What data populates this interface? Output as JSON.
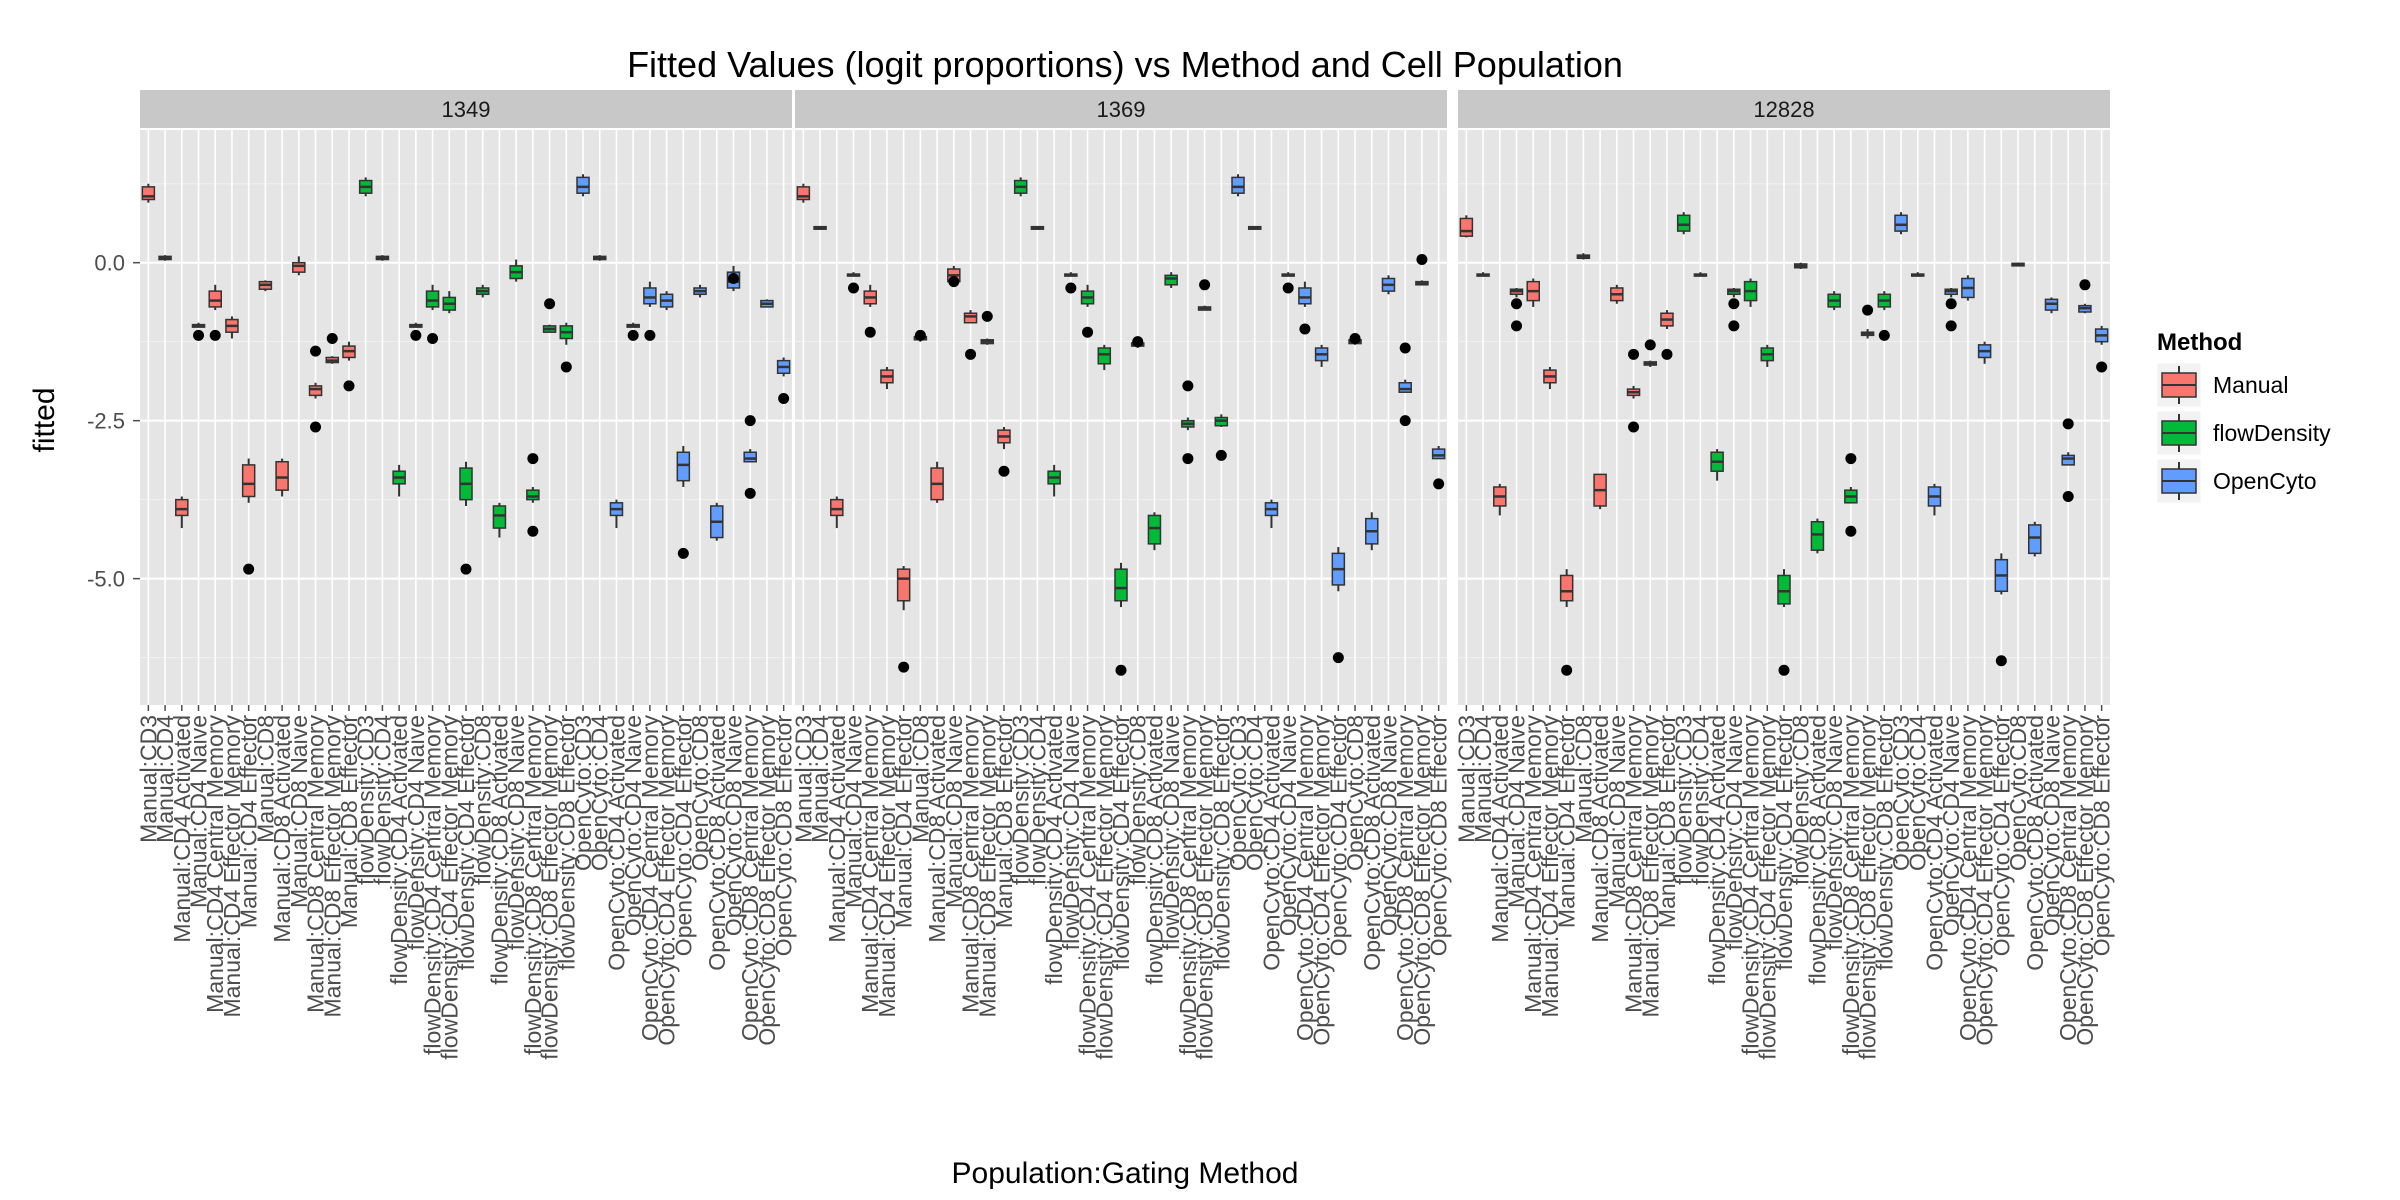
{
  "chart_data": {
    "type": "boxplot",
    "title": "Fitted Values (logit proportions) vs Method and Cell Population",
    "xlabel": "Population:Gating Method",
    "ylabel": "fitted",
    "ylim": [
      -7.0,
      2.1
    ],
    "yticks": [
      0.0,
      -2.5,
      -5.0
    ],
    "ytick_labels": [
      "0.0",
      "-2.5",
      "-5.0"
    ],
    "grid": true,
    "legend": {
      "title": "Method",
      "position": "right",
      "entries": [
        {
          "name": "Manual",
          "color": "#F8766D"
        },
        {
          "name": "flowDensity",
          "color": "#00BA38"
        },
        {
          "name": "OpenCyto",
          "color": "#619CFF"
        }
      ]
    },
    "categories": [
      "Manual:CD3",
      "Manual:CD4",
      "Manual:CD4 Activated",
      "Manual:CD4 Naive",
      "Manual:CD4 Central Memory",
      "Manual:CD4 Effector Memory",
      "Manual:CD4 Effector",
      "Manual:CD8",
      "Manual:CD8 Activated",
      "Manual:CD8 Naive",
      "Manual:CD8 Central Memory",
      "Manual:CD8 Effector Memory",
      "Manual:CD8 Effector",
      "flowDensity:CD3",
      "flowDensity:CD4",
      "flowDensity:CD4 Activated",
      "flowDensity:CD4 Naive",
      "flowDensity:CD4 Central Memory",
      "flowDensity:CD4 Effector Memory",
      "flowDensity:CD4 Effector",
      "flowDensity:CD8",
      "flowDensity:CD8 Activated",
      "flowDensity:CD8 Naive",
      "flowDensity:CD8 Central Memory",
      "flowDensity:CD8 Effector Memory",
      "flowDensity:CD8 Effector",
      "OpenCyto:CD3",
      "OpenCyto:CD4",
      "OpenCyto:CD4 Activated",
      "OpenCyto:CD4 Naive",
      "OpenCyto:CD4 Central Memory",
      "OpenCyto:CD4 Effector Memory",
      "OpenCyto:CD4 Effector",
      "OpenCyto:CD8",
      "OpenCyto:CD8 Activated",
      "OpenCyto:CD8 Naive",
      "OpenCyto:CD8 Central Memory",
      "OpenCyto:CD8 Effector Memory",
      "OpenCyto:CD8 Effector"
    ],
    "box_fields": [
      "lower_whisker",
      "q1",
      "median",
      "q3",
      "upper_whisker"
    ],
    "panels": [
      {
        "label": "1349",
        "boxes": [
          [
            0.95,
            1.0,
            1.05,
            1.2,
            1.25
          ],
          [
            0.03,
            0.05,
            0.07,
            0.1,
            0.12
          ],
          [
            -4.2,
            -4.0,
            -3.9,
            -3.75,
            -3.7
          ],
          [
            -1.0,
            -1.02,
            -1.0,
            -0.98,
            -0.95
          ],
          [
            -0.75,
            -0.7,
            -0.6,
            -0.45,
            -0.35
          ],
          [
            -1.2,
            -1.1,
            -1.0,
            -0.9,
            -0.85
          ],
          [
            -3.8,
            -3.7,
            -3.5,
            -3.2,
            -3.1
          ],
          [
            -0.45,
            -0.42,
            -0.35,
            -0.3,
            -0.28
          ],
          [
            -3.7,
            -3.6,
            -3.4,
            -3.15,
            -3.1
          ],
          [
            -0.2,
            -0.15,
            -0.05,
            0.0,
            0.1
          ],
          [
            -2.15,
            -2.1,
            -2.0,
            -1.95,
            -1.9
          ],
          [
            -1.6,
            -1.58,
            -1.55,
            -1.5,
            -1.48
          ],
          [
            -1.55,
            -1.5,
            -1.4,
            -1.32,
            -1.25
          ],
          [
            1.05,
            1.1,
            1.2,
            1.3,
            1.35
          ],
          [
            0.03,
            0.05,
            0.07,
            0.1,
            0.12
          ],
          [
            -3.7,
            -3.5,
            -3.4,
            -3.3,
            -3.2
          ],
          [
            -1.0,
            -1.02,
            -1.0,
            -0.98,
            -0.95
          ],
          [
            -0.75,
            -0.7,
            -0.6,
            -0.45,
            -0.35
          ],
          [
            -0.8,
            -0.75,
            -0.65,
            -0.55,
            -0.45
          ],
          [
            -3.85,
            -3.75,
            -3.5,
            -3.25,
            -3.15
          ],
          [
            -0.55,
            -0.5,
            -0.45,
            -0.4,
            -0.35
          ],
          [
            -4.35,
            -4.2,
            -4.0,
            -3.85,
            -3.8
          ],
          [
            -0.3,
            -0.25,
            -0.15,
            -0.05,
            0.05
          ],
          [
            -3.8,
            -3.75,
            -3.7,
            -3.6,
            -3.55
          ],
          [
            -1.1,
            -1.1,
            -1.05,
            -1.0,
            -0.98
          ],
          [
            -1.3,
            -1.2,
            -1.1,
            -1.0,
            -0.95
          ],
          [
            1.05,
            1.1,
            1.2,
            1.35,
            1.4
          ],
          [
            0.03,
            0.05,
            0.07,
            0.1,
            0.12
          ],
          [
            -4.2,
            -4.0,
            -3.9,
            -3.8,
            -3.75
          ],
          [
            -1.0,
            -1.02,
            -1.0,
            -0.98,
            -0.95
          ],
          [
            -0.7,
            -0.65,
            -0.55,
            -0.4,
            -0.3
          ],
          [
            -0.75,
            -0.7,
            -0.6,
            -0.5,
            -0.45
          ],
          [
            -3.55,
            -3.45,
            -3.2,
            -3.0,
            -2.9
          ],
          [
            -0.55,
            -0.5,
            -0.45,
            -0.4,
            -0.35
          ],
          [
            -4.4,
            -4.35,
            -4.1,
            -3.85,
            -3.8
          ],
          [
            -0.45,
            -0.4,
            -0.3,
            -0.15,
            -0.05
          ],
          [
            -3.15,
            -3.15,
            -3.1,
            -3.0,
            -2.95
          ],
          [
            -0.7,
            -0.7,
            -0.65,
            -0.6,
            -0.58
          ],
          [
            -1.8,
            -1.75,
            -1.65,
            -1.55,
            -1.5
          ]
        ],
        "outliers": [
          [],
          [],
          [],
          [
            -1.15
          ],
          [
            -1.15
          ],
          [],
          [
            -4.85
          ],
          [],
          [],
          [],
          [
            -2.6,
            -1.4
          ],
          [
            -1.2
          ],
          [
            -1.95
          ],
          [],
          [],
          [],
          [
            -1.15
          ],
          [
            -1.2
          ],
          [],
          [
            -4.85
          ],
          [],
          [],
          [],
          [
            -3.1,
            -4.25
          ],
          [
            -0.65
          ],
          [
            -1.65
          ],
          [],
          [],
          [],
          [
            -1.15
          ],
          [
            -1.15
          ],
          [],
          [
            -4.6
          ],
          [],
          [],
          [
            -0.25
          ],
          [
            -2.5,
            -3.65
          ],
          [],
          [
            -2.15
          ]
        ]
      },
      {
        "label": "1369",
        "boxes": [
          [
            0.95,
            1.0,
            1.05,
            1.2,
            1.25
          ],
          [
            0.52,
            0.53,
            0.55,
            0.57,
            0.58
          ],
          [
            -4.2,
            -4.0,
            -3.9,
            -3.75,
            -3.7
          ],
          [
            -0.2,
            -0.2,
            -0.2,
            -0.18,
            -0.15
          ],
          [
            -0.7,
            -0.65,
            -0.55,
            -0.45,
            -0.35
          ],
          [
            -2.0,
            -1.9,
            -1.8,
            -1.7,
            -1.65
          ],
          [
            -5.5,
            -5.35,
            -5.0,
            -4.85,
            -4.8
          ],
          [
            -1.25,
            -1.22,
            -1.2,
            -1.17,
            -1.15
          ],
          [
            -3.8,
            -3.75,
            -3.5,
            -3.25,
            -3.15
          ],
          [
            -0.3,
            -0.3,
            -0.2,
            -0.1,
            -0.05
          ],
          [
            -0.95,
            -0.95,
            -0.85,
            -0.8,
            -0.75
          ],
          [
            -1.3,
            -1.28,
            -1.25,
            -1.22,
            -1.2
          ],
          [
            -2.95,
            -2.85,
            -2.75,
            -2.65,
            -2.6
          ],
          [
            1.05,
            1.1,
            1.2,
            1.3,
            1.35
          ],
          [
            0.52,
            0.53,
            0.55,
            0.57,
            0.58
          ],
          [
            -3.7,
            -3.5,
            -3.4,
            -3.3,
            -3.2
          ],
          [
            -0.2,
            -0.2,
            -0.2,
            -0.18,
            -0.15
          ],
          [
            -0.7,
            -0.65,
            -0.55,
            -0.45,
            -0.35
          ],
          [
            -1.7,
            -1.6,
            -1.45,
            -1.35,
            -1.3
          ],
          [
            -5.45,
            -5.35,
            -5.15,
            -4.85,
            -4.75
          ],
          [
            -1.35,
            -1.32,
            -1.3,
            -1.27,
            -1.25
          ],
          [
            -4.55,
            -4.45,
            -4.2,
            -4.0,
            -3.95
          ],
          [
            -0.4,
            -0.35,
            -0.25,
            -0.2,
            -0.15
          ],
          [
            -2.65,
            -2.6,
            -2.55,
            -2.5,
            -2.45
          ],
          [
            -0.75,
            -0.75,
            -0.72,
            -0.7,
            -0.68
          ],
          [
            -2.6,
            -2.58,
            -2.5,
            -2.45,
            -2.4
          ],
          [
            1.05,
            1.1,
            1.2,
            1.35,
            1.4
          ],
          [
            0.52,
            0.53,
            0.55,
            0.57,
            0.58
          ],
          [
            -4.2,
            -4.0,
            -3.9,
            -3.8,
            -3.75
          ],
          [
            -0.2,
            -0.2,
            -0.2,
            -0.18,
            -0.15
          ],
          [
            -0.7,
            -0.65,
            -0.55,
            -0.4,
            -0.3
          ],
          [
            -1.65,
            -1.55,
            -1.45,
            -1.35,
            -1.3
          ],
          [
            -5.2,
            -5.1,
            -4.85,
            -4.6,
            -4.5
          ],
          [
            -1.3,
            -1.28,
            -1.25,
            -1.22,
            -1.2
          ],
          [
            -4.55,
            -4.45,
            -4.25,
            -4.05,
            -3.95
          ],
          [
            -0.5,
            -0.45,
            -0.35,
            -0.25,
            -0.2
          ],
          [
            -2.05,
            -2.05,
            -2.0,
            -1.9,
            -1.85
          ],
          [
            -0.35,
            -0.35,
            -0.33,
            -0.3,
            -0.28
          ],
          [
            -3.1,
            -3.1,
            -3.05,
            -2.95,
            -2.9
          ]
        ],
        "outliers": [
          [],
          [],
          [],
          [
            -0.4
          ],
          [
            -1.1
          ],
          [],
          [
            -6.4
          ],
          [
            -1.15
          ],
          [],
          [
            -0.3
          ],
          [
            -1.45
          ],
          [
            -0.85
          ],
          [
            -3.3
          ],
          [],
          [],
          [],
          [
            -0.4
          ],
          [
            -1.1
          ],
          [],
          [
            -6.45
          ],
          [
            -1.25
          ],
          [],
          [],
          [
            -1.95,
            -3.1
          ],
          [
            -0.35
          ],
          [
            -3.05
          ],
          [],
          [],
          [],
          [
            -0.4
          ],
          [
            -1.05
          ],
          [],
          [
            -6.25
          ],
          [
            -1.2
          ],
          [],
          [],
          [
            -1.35,
            -2.5
          ],
          [
            0.05
          ],
          [
            -3.5
          ]
        ]
      },
      {
        "label": "12828",
        "boxes": [
          [
            0.4,
            0.42,
            0.5,
            0.7,
            0.75
          ],
          [
            -0.2,
            -0.2,
            -0.2,
            -0.18,
            -0.15
          ],
          [
            -4.0,
            -3.85,
            -3.7,
            -3.55,
            -3.5
          ],
          [
            -0.55,
            -0.5,
            -0.45,
            -0.42,
            -0.4
          ],
          [
            -0.7,
            -0.6,
            -0.45,
            -0.3,
            -0.25
          ],
          [
            -2.0,
            -1.9,
            -1.8,
            -1.7,
            -1.65
          ],
          [
            -5.45,
            -5.35,
            -5.2,
            -4.95,
            -4.85
          ],
          [
            0.05,
            0.07,
            0.1,
            0.12,
            0.15
          ],
          [
            -3.9,
            -3.85,
            -3.6,
            -3.35,
            -3.35
          ],
          [
            -0.65,
            -0.6,
            -0.5,
            -0.4,
            -0.35
          ],
          [
            -2.15,
            -2.1,
            -2.05,
            -2.0,
            -1.95
          ],
          [
            -1.65,
            -1.62,
            -1.6,
            -1.57,
            -1.55
          ],
          [
            -1.05,
            -1.0,
            -0.9,
            -0.8,
            -0.75
          ],
          [
            0.45,
            0.5,
            0.6,
            0.75,
            0.8
          ],
          [
            -0.2,
            -0.2,
            -0.2,
            -0.18,
            -0.15
          ],
          [
            -3.45,
            -3.3,
            -3.15,
            -3.0,
            -2.95
          ],
          [
            -0.55,
            -0.5,
            -0.45,
            -0.42,
            -0.4
          ],
          [
            -0.7,
            -0.6,
            -0.45,
            -0.3,
            -0.25
          ],
          [
            -1.65,
            -1.55,
            -1.45,
            -1.35,
            -1.3
          ],
          [
            -5.45,
            -5.4,
            -5.2,
            -4.95,
            -4.85
          ],
          [
            -0.1,
            -0.08,
            -0.05,
            -0.02,
            0.0
          ],
          [
            -4.6,
            -4.55,
            -4.3,
            -4.1,
            -4.05
          ],
          [
            -0.75,
            -0.7,
            -0.6,
            -0.5,
            -0.45
          ],
          [
            -3.8,
            -3.8,
            -3.7,
            -3.6,
            -3.55
          ],
          [
            -1.2,
            -1.15,
            -1.12,
            -1.1,
            -1.05
          ],
          [
            -0.75,
            -0.7,
            -0.6,
            -0.5,
            -0.45
          ],
          [
            0.45,
            0.5,
            0.6,
            0.75,
            0.8
          ],
          [
            -0.2,
            -0.2,
            -0.2,
            -0.18,
            -0.15
          ],
          [
            -4.0,
            -3.85,
            -3.7,
            -3.55,
            -3.5
          ],
          [
            -0.55,
            -0.5,
            -0.45,
            -0.42,
            -0.4
          ],
          [
            -0.6,
            -0.55,
            -0.4,
            -0.25,
            -0.2
          ],
          [
            -1.6,
            -1.5,
            -1.4,
            -1.3,
            -1.25
          ],
          [
            -5.25,
            -5.2,
            -4.95,
            -4.7,
            -4.6
          ],
          [
            -0.05,
            -0.05,
            -0.03,
            -0.01,
            0.0
          ],
          [
            -4.65,
            -4.6,
            -4.35,
            -4.15,
            -4.1
          ],
          [
            -0.8,
            -0.75,
            -0.65,
            -0.58,
            -0.55
          ],
          [
            -3.2,
            -3.2,
            -3.1,
            -3.05,
            -3.0
          ],
          [
            -0.8,
            -0.78,
            -0.72,
            -0.68,
            -0.65
          ],
          [
            -1.3,
            -1.25,
            -1.15,
            -1.05,
            -1.0
          ]
        ],
        "outliers": [
          [],
          [],
          [],
          [
            -0.65,
            -1.0
          ],
          [],
          [],
          [
            -6.45
          ],
          [],
          [],
          [],
          [
            -1.45,
            -2.6
          ],
          [
            -1.3
          ],
          [
            -1.45
          ],
          [],
          [],
          [],
          [
            -0.65,
            -1.0
          ],
          [],
          [],
          [
            -6.45
          ],
          [],
          [],
          [],
          [
            -3.1,
            -4.25
          ],
          [
            -0.75
          ],
          [
            -1.15
          ],
          [],
          [],
          [],
          [
            -0.65,
            -1.0
          ],
          [],
          [],
          [
            -6.3
          ],
          [],
          [],
          [],
          [
            -2.55,
            -3.7
          ],
          [
            -0.35
          ],
          [
            -1.65
          ]
        ]
      }
    ]
  }
}
